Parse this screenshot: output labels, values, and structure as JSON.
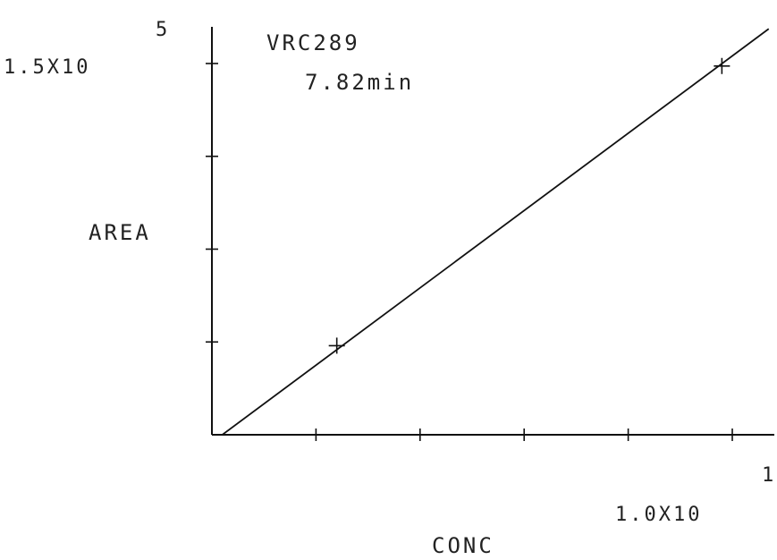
{
  "chart_data": {
    "type": "line",
    "title": "VRC289",
    "subtitle": "7.82min",
    "xlabel": "CONC",
    "ylabel": "AREA",
    "x_scale_label": "1.0X10",
    "x_scale_exponent": "1",
    "y_scale_label": "1.5X10",
    "y_scale_exponent": "5",
    "xlim": [
      0,
      1.0
    ],
    "ylim": [
      0,
      1.5
    ],
    "x_ticks": [
      0.2,
      0.4,
      0.6,
      0.8,
      1.0
    ],
    "y_ticks": [
      0.375,
      0.75,
      1.125,
      1.5
    ],
    "grid": false,
    "series": [
      {
        "points": [
          {
            "x": 0.24,
            "y": 0.36
          },
          {
            "x": 0.98,
            "y": 1.49
          }
        ]
      }
    ],
    "fit_line": {
      "x": [
        0.02,
        1.07
      ],
      "y": [
        0.0,
        1.64
      ]
    }
  }
}
